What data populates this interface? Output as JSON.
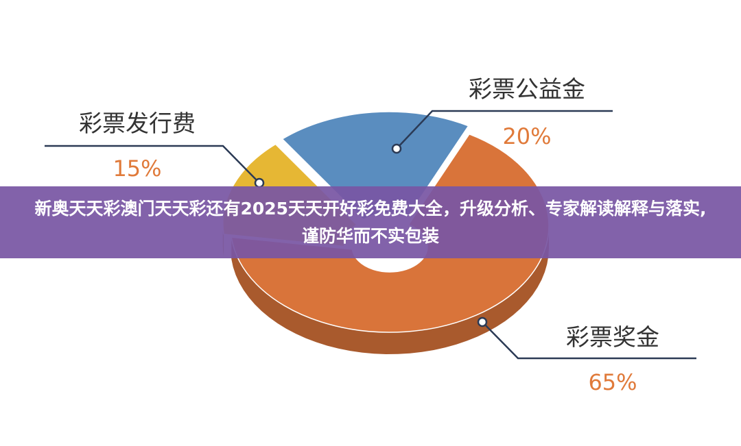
{
  "chart_data": {
    "type": "pie",
    "title": "新奥天天彩澳门天天彩还有2025天天开好彩免费大全，升级分析、专家解读解释与落实,谨防华而不实包装",
    "categories": [
      "彩票发行费",
      "彩票公益金",
      "彩票奖金"
    ],
    "values": [
      15,
      20,
      65
    ],
    "value_labels": [
      "15%",
      "20%",
      "65%"
    ],
    "colors": [
      "#e6b734",
      "#5a8dbf",
      "#d9743a"
    ]
  }
}
